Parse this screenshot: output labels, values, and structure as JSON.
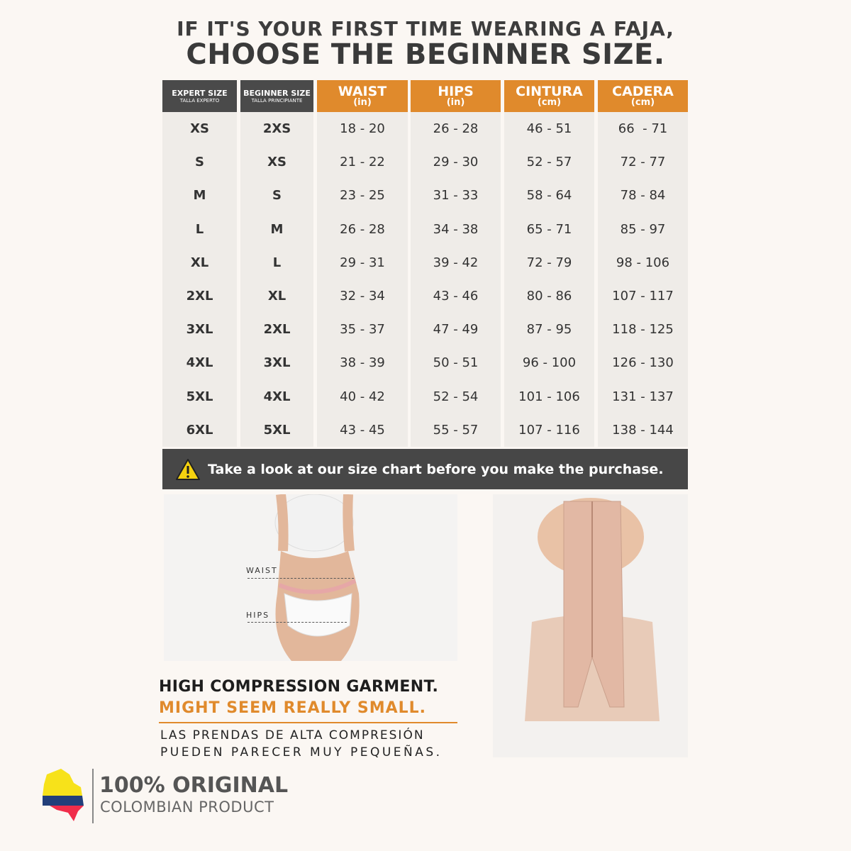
{
  "headline": {
    "line1": "IF IT'S YOUR FIRST TIME WEARING A FAJA,",
    "line2": "CHOOSE THE BEGINNER SIZE."
  },
  "colors": {
    "orange": "#e08a2c",
    "dark": "#4a4a4a",
    "cell_bg": "#efece8"
  },
  "table": {
    "columns": [
      {
        "title": "EXPERT SIZE",
        "sub": "TALLA EXPERTO",
        "style": "dark"
      },
      {
        "title": "BEGINNER SIZE",
        "sub": "TALLA PRINCIPIANTE",
        "style": "dark"
      },
      {
        "title": "WAIST",
        "sub": "(in)",
        "style": "orange"
      },
      {
        "title": "HIPS",
        "sub": "(in)",
        "style": "orange"
      },
      {
        "title": "CINTURA",
        "sub": "(cm)",
        "style": "orange"
      },
      {
        "title": "CADERA",
        "sub": "(cm)",
        "style": "orange"
      }
    ],
    "rows": [
      [
        "XS",
        "2XS",
        "18 - 20",
        "26 - 28",
        "46 - 51",
        "66  - 71"
      ],
      [
        "S",
        "XS",
        "21 - 22",
        "29 - 30",
        "52 - 57",
        "72 - 77"
      ],
      [
        "M",
        "S",
        "23 - 25",
        "31 - 33",
        "58 - 64",
        "78 - 84"
      ],
      [
        "L",
        "M",
        "26 - 28",
        "34 - 38",
        "65 - 71",
        "85 - 97"
      ],
      [
        "XL",
        "L",
        "29 - 31",
        "39 - 42",
        "72 - 79",
        "98 - 106"
      ],
      [
        "2XL",
        "XL",
        "32 - 34",
        "43 - 46",
        "80 - 86",
        "107 - 117"
      ],
      [
        "3XL",
        "2XL",
        "35 - 37",
        "47 - 49",
        "87 - 95",
        "118 - 125"
      ],
      [
        "4XL",
        "3XL",
        "38 - 39",
        "50 - 51",
        "96 - 100",
        "126 - 130"
      ],
      [
        "5XL",
        "4XL",
        "40 - 42",
        "52 - 54",
        "101 - 106",
        "131 - 137"
      ],
      [
        "6XL",
        "5XL",
        "43 - 45",
        "55 - 57",
        "107 - 116",
        "138 - 144"
      ]
    ]
  },
  "warning": {
    "icon": "warning-triangle-icon",
    "text": "Take a look at our size chart before you make the purchase."
  },
  "photo_labels": {
    "waist": "WAIST",
    "hips": "HIPS"
  },
  "garment_note": {
    "line1": "HIGH COMPRESSION GARMENT.",
    "line2": "MIGHT SEEM REALLY SMALL.",
    "line3": "LAS PRENDAS DE ALTA COMPRESIÓN",
    "line4": "PUEDEN  PARECER  MUY  PEQUEÑAS."
  },
  "origin": {
    "title": "100% ORIGINAL",
    "subtitle": "COLOMBIAN PRODUCT",
    "icon": "colombia-map-icon"
  }
}
